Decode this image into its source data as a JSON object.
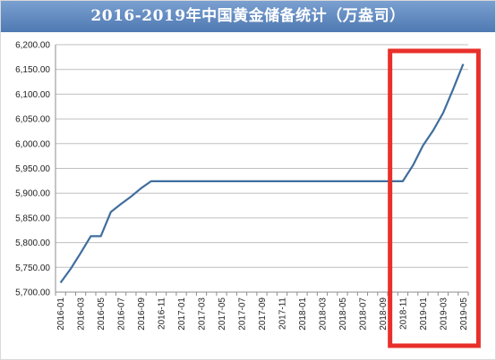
{
  "title": "2016-2019年中国黄金储备统计（万盎司）",
  "colors": {
    "title_bar": "#5b84bb",
    "line": "#3f6e9e",
    "highlight": "#e8302b"
  },
  "chart_data": {
    "type": "line",
    "title": "2016-2019年中国黄金储备统计（万盎司）",
    "xlabel": "",
    "ylabel": "",
    "ylim": [
      5700,
      6200
    ],
    "yticks": [
      5700,
      5750,
      5800,
      5850,
      5900,
      5950,
      6000,
      6050,
      6100,
      6150,
      6200
    ],
    "ytick_labels": [
      "5,700.00",
      "5,750.00",
      "5,800.00",
      "5,850.00",
      "5,900.00",
      "5,950.00",
      "6,000.00",
      "6,050.00",
      "6,100.00",
      "6,150.00",
      "6,200.00"
    ],
    "grid": true,
    "legend": "none",
    "x": [
      "2016-01",
      "2016-02",
      "2016-03",
      "2016-04",
      "2016-05",
      "2016-06",
      "2016-07",
      "2016-08",
      "2016-09",
      "2016-10",
      "2016-11",
      "2016-12",
      "2017-01",
      "2017-02",
      "2017-03",
      "2017-04",
      "2017-05",
      "2017-06",
      "2017-07",
      "2017-08",
      "2017-09",
      "2017-10",
      "2017-11",
      "2017-12",
      "2018-01",
      "2018-02",
      "2018-03",
      "2018-04",
      "2018-05",
      "2018-06",
      "2018-07",
      "2018-08",
      "2018-09",
      "2018-10",
      "2018-11",
      "2018-12",
      "2019-01",
      "2019-02",
      "2019-03",
      "2019-04",
      "2019-05"
    ],
    "xtick_labels": [
      "2016-01",
      "2016-03",
      "2016-05",
      "2016-07",
      "2016-09",
      "2016-11",
      "2017-01",
      "2017-03",
      "2017-05",
      "2017-07",
      "2017-09",
      "2017-11",
      "2018-01",
      "2018-03",
      "2018-05",
      "2018-07",
      "2018-09",
      "2018-11",
      "2019-01",
      "2019-03",
      "2019-05"
    ],
    "series": [
      {
        "values": [
          5719,
          5747,
          5779,
          5813,
          5813,
          5862,
          5878,
          5893,
          5910,
          5924,
          5924,
          5924,
          5924,
          5924,
          5924,
          5924,
          5924,
          5924,
          5924,
          5924,
          5924,
          5924,
          5924,
          5924,
          5924,
          5924,
          5924,
          5924,
          5924,
          5924,
          5924,
          5924,
          5924,
          5924,
          5924,
          5956,
          5996,
          6026,
          6062,
          6110,
          6161
        ]
      }
    ],
    "highlight_range": [
      "2018-10",
      "2019-05"
    ]
  }
}
